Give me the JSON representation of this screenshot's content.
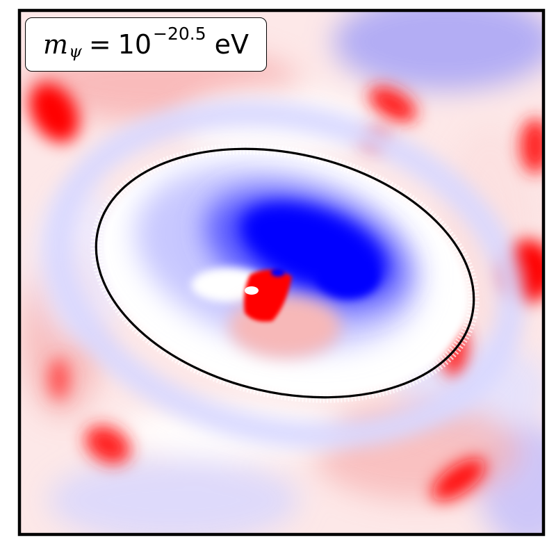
{
  "chart_data": {
    "type": "heatmap",
    "title": "",
    "xlabel": "",
    "ylabel": "",
    "colormap": "bwr",
    "colors": {
      "negative": "#0000ff",
      "zero": "#ffffff",
      "positive": "#ff0000",
      "frame": "#000000",
      "contour": "#000000"
    },
    "axis_ticks": false,
    "grid": false,
    "contour": {
      "shape": "ellipse",
      "color": "contour"
    },
    "annotation": {
      "symbol": "m",
      "subscript": "ψ",
      "equals": "=",
      "base": "10",
      "exponent": "−20.5",
      "unit": "eV",
      "placement": "top-left"
    }
  }
}
